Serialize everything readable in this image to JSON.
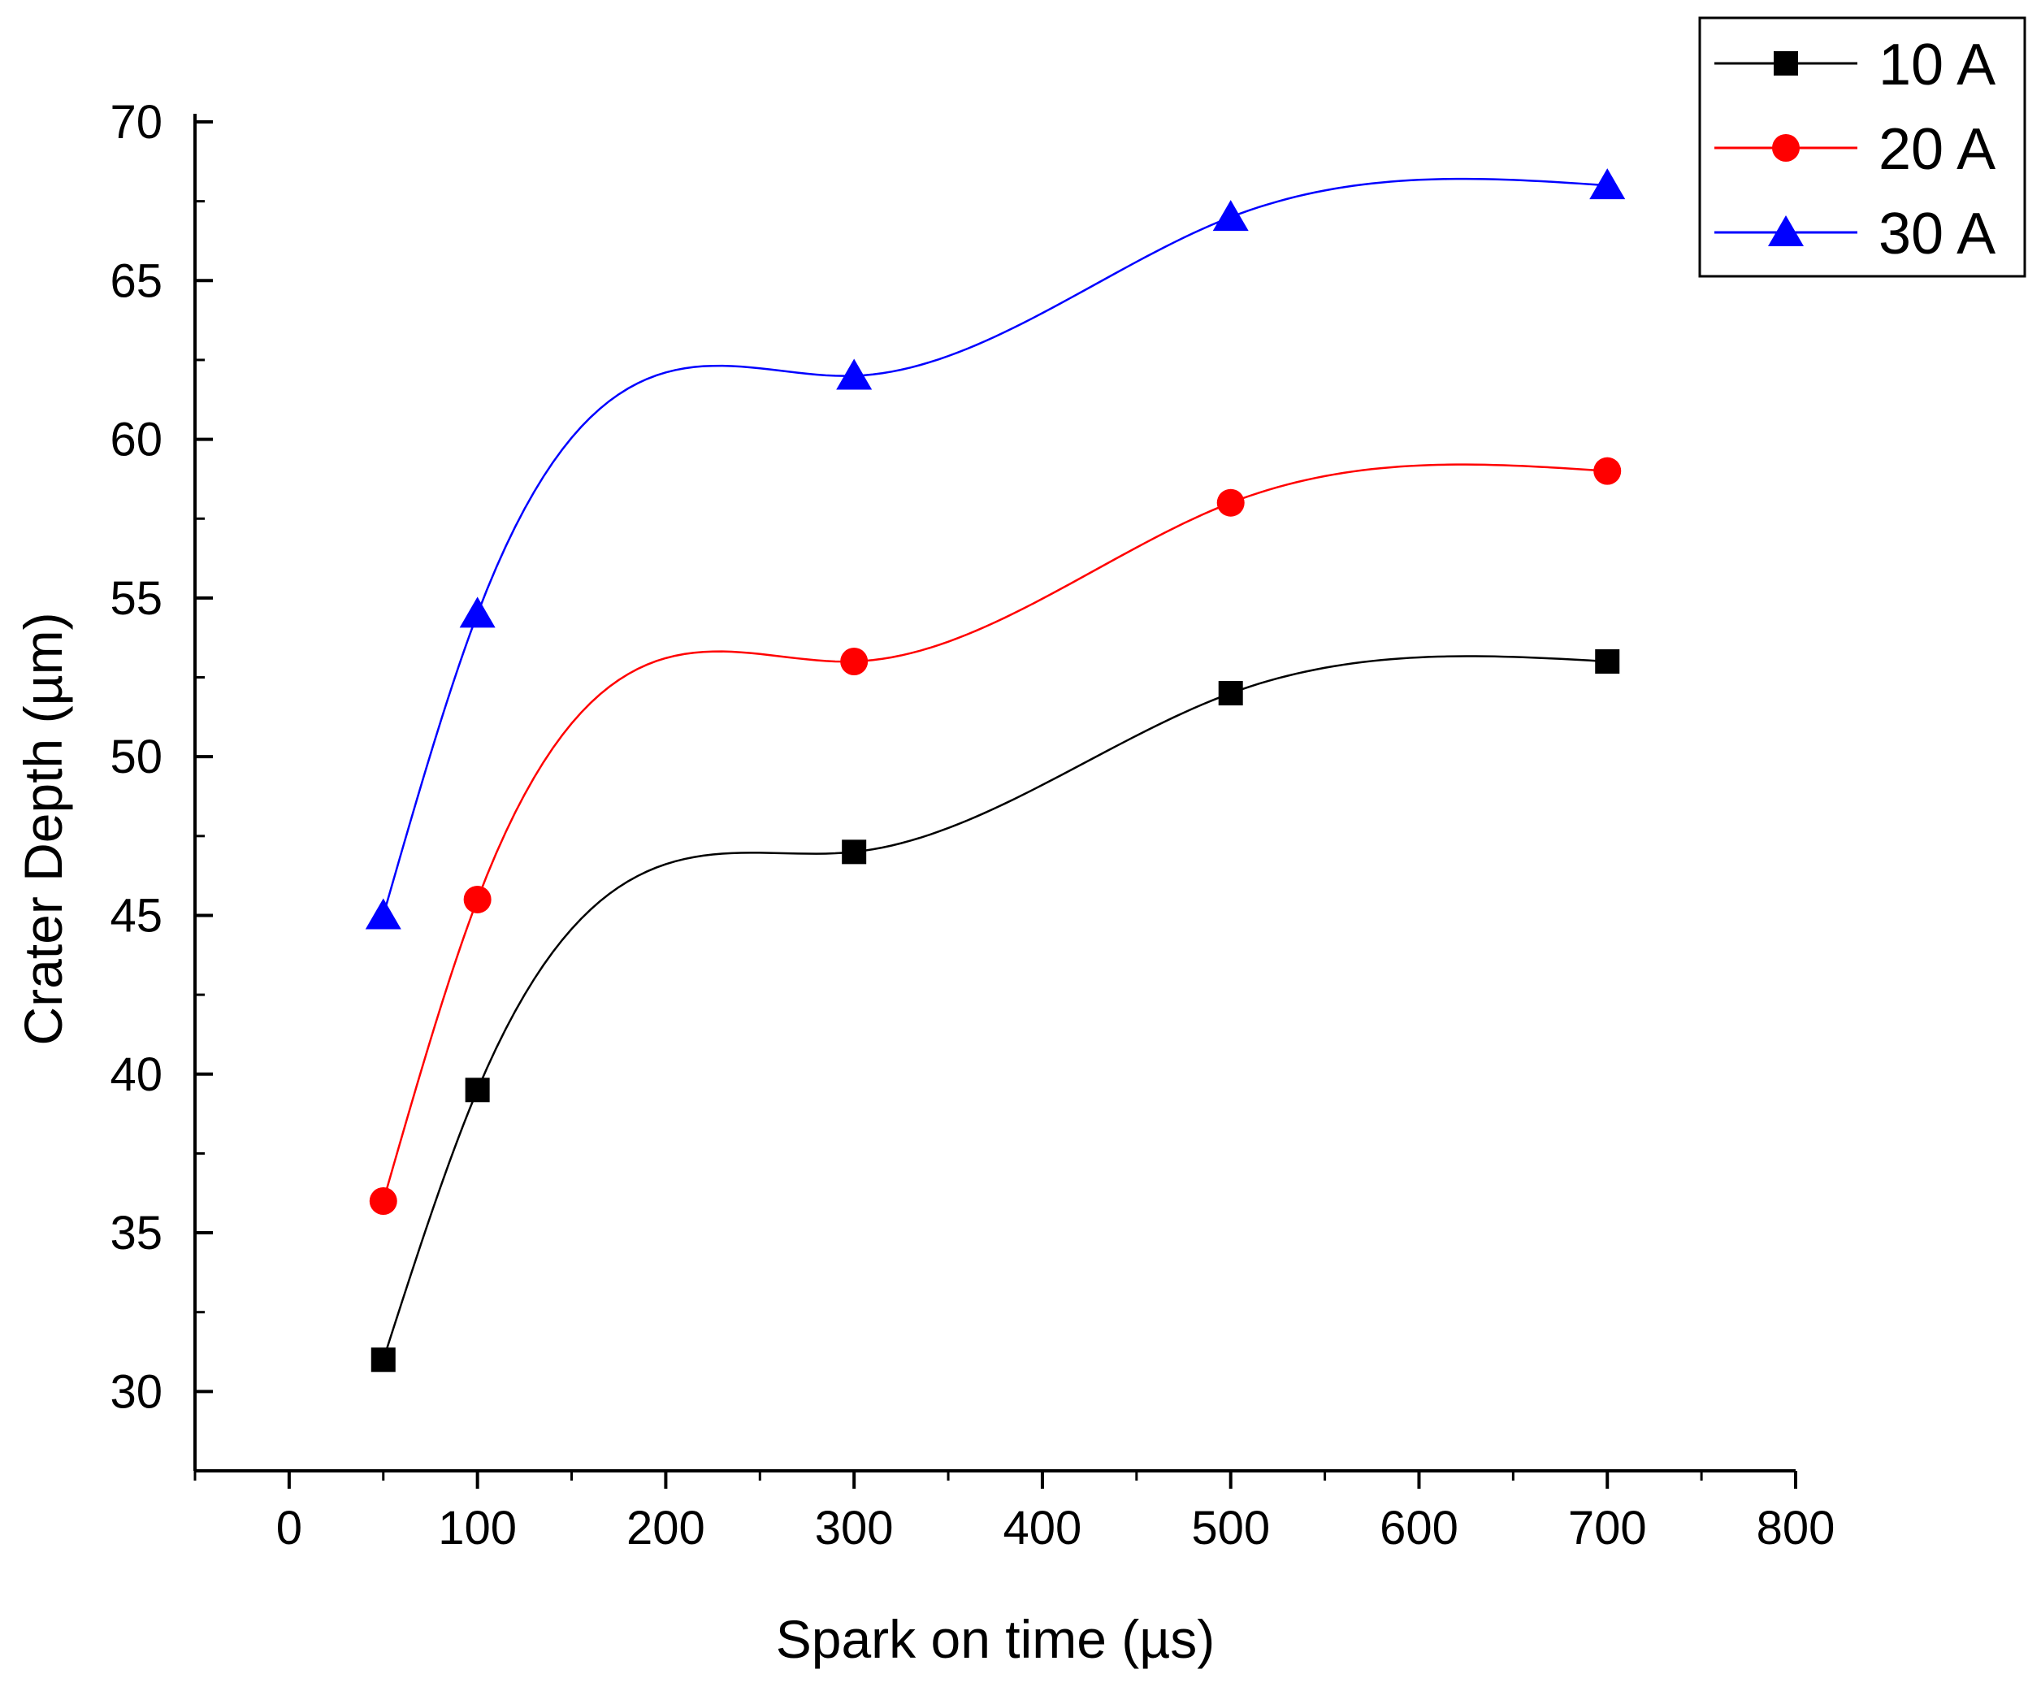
{
  "chart_data": {
    "type": "line",
    "title": "",
    "xlabel": "Spark on time (µs)",
    "ylabel": "Crater Depth (µm)",
    "xlim": [
      -50,
      800
    ],
    "ylim": [
      27.5,
      70
    ],
    "x_ticks": [
      0,
      100,
      200,
      300,
      400,
      500,
      600,
      700,
      800
    ],
    "x_tick_labels": [
      "0",
      "100",
      "200",
      "300",
      "400",
      "500",
      "600",
      "700",
      "800"
    ],
    "y_ticks": [
      30,
      35,
      40,
      45,
      50,
      55,
      60,
      65,
      70
    ],
    "y_tick_labels": [
      "30",
      "35",
      "40",
      "45",
      "50",
      "55",
      "60",
      "65",
      "70"
    ],
    "grid": false,
    "legend_position": "top-right",
    "x": [
      50,
      100,
      300,
      500,
      700
    ],
    "series": [
      {
        "name": "10 A",
        "color": "#000000",
        "marker": "square",
        "values": [
          31,
          39.5,
          47,
          52,
          53
        ]
      },
      {
        "name": "20 A",
        "color": "#ff0000",
        "marker": "circle",
        "values": [
          36,
          45.5,
          53,
          58,
          59
        ]
      },
      {
        "name": "30 A",
        "color": "#0000ff",
        "marker": "triangle",
        "values": [
          45,
          54.5,
          62,
          67,
          68
        ]
      }
    ]
  }
}
